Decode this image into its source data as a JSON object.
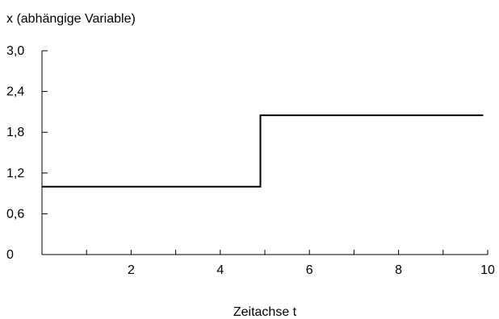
{
  "chart_data": {
    "type": "line",
    "ylabel": "x (abhängige Variable)",
    "xlabel": "Zeitachse t",
    "xlim": [
      0,
      10
    ],
    "ylim": [
      0,
      3.0
    ],
    "x_ticks": [
      2,
      4,
      6,
      8,
      10
    ],
    "x_tick_labels": [
      "2",
      "4",
      "6",
      "8",
      "10"
    ],
    "x_minor_ticks": [
      1,
      3,
      5,
      7,
      9
    ],
    "y_ticks": [
      0,
      0.6,
      1.2,
      1.8,
      2.4,
      3.0
    ],
    "y_tick_labels": [
      "0",
      "0,6",
      "1,2",
      "1,8",
      "2,4",
      "3,0"
    ],
    "grid": false,
    "series": [
      {
        "style": "step",
        "color": "#000000",
        "x": [
          0,
          4.9,
          4.9,
          9.9
        ],
        "y": [
          1.0,
          1.0,
          2.05,
          2.05
        ]
      }
    ]
  }
}
